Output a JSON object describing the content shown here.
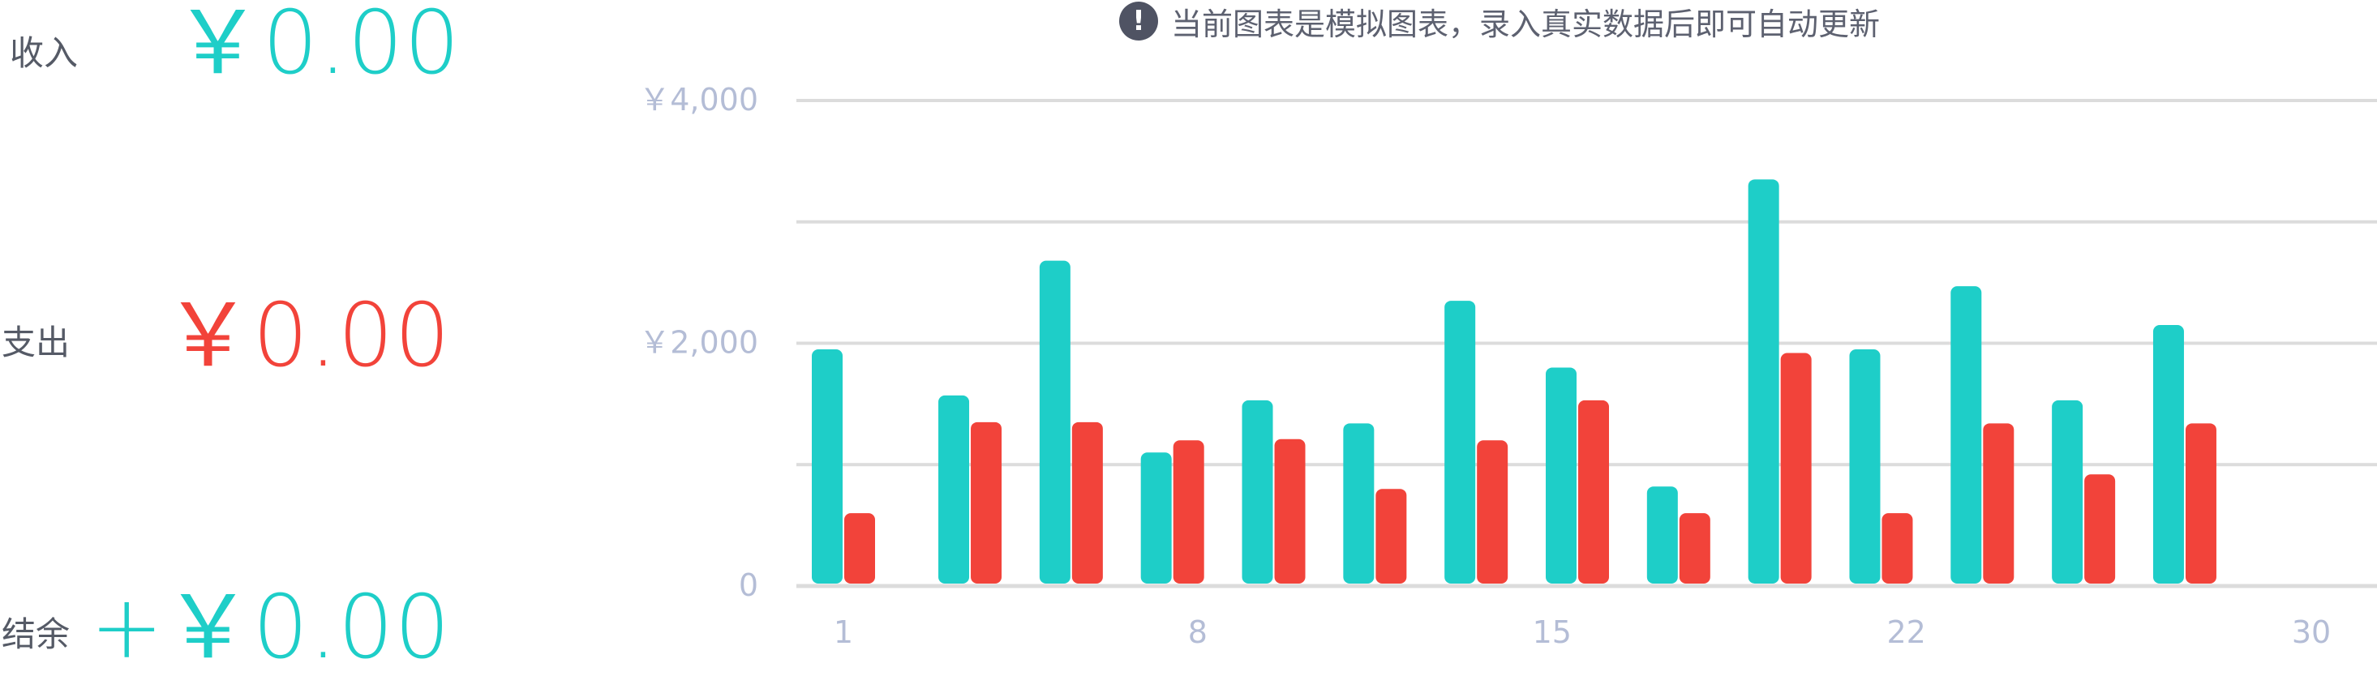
{
  "summary": {
    "income": {
      "label": "收入",
      "value": "￥0.00",
      "color": "#1ecec8"
    },
    "expense": {
      "label": "支出",
      "value": "￥0.00",
      "color": "#f2433a"
    },
    "balance": {
      "label": "结余",
      "value": "+￥0.00",
      "color": "#1ecec8"
    }
  },
  "notice": {
    "icon": "exclamation-circle-icon",
    "text": "当前图表是模拟图表，录入真实数据后即可自动更新"
  },
  "chart_data": {
    "type": "bar",
    "title": "",
    "xlabel": "",
    "ylabel": "",
    "ylim": [
      0,
      4000
    ],
    "grid": true,
    "y_ticks": [
      {
        "value": 0,
        "label": "0"
      },
      {
        "value": 2000,
        "label": "￥2,000"
      },
      {
        "value": 4000,
        "label": "￥4,000"
      }
    ],
    "x_ticks": [
      {
        "day": 1,
        "label": "1"
      },
      {
        "day": 8,
        "label": "8"
      },
      {
        "day": 15,
        "label": "15"
      },
      {
        "day": 22,
        "label": "22"
      },
      {
        "day": 30,
        "label": "30"
      }
    ],
    "x": [
      1,
      3.5,
      5.5,
      7.5,
      9.5,
      11.5,
      13.5,
      15.5,
      17.5,
      19.5,
      21.5,
      23.5,
      25.5,
      27.5,
      29.5
    ],
    "series": [
      {
        "key": "income",
        "color": "#1ecec8",
        "values": [
          1950,
          1570,
          2680,
          1100,
          1530,
          1340,
          2350,
          1800,
          820,
          3350,
          1950,
          2470,
          1530,
          2150,
          0
        ]
      },
      {
        "key": "expense",
        "color": "#f2433a",
        "values": [
          600,
          1350,
          1350,
          1200,
          1210,
          800,
          1200,
          1530,
          600,
          1920,
          600,
          1340,
          920,
          1340,
          0
        ]
      }
    ],
    "colors": {
      "grid": "#dcdcdc",
      "tick_label": "#b4bdd6"
    }
  }
}
